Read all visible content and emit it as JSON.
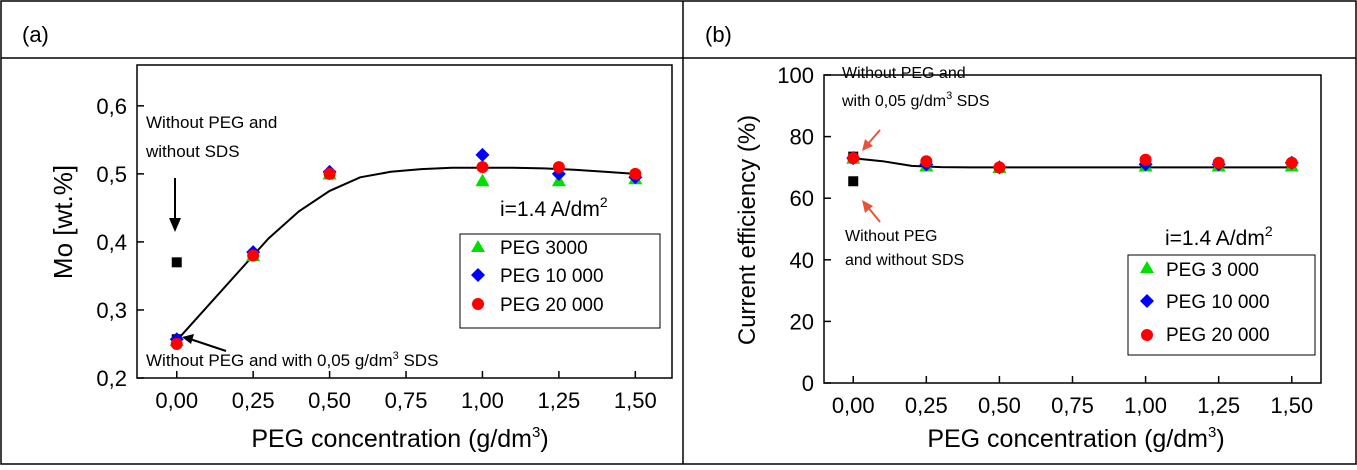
{
  "panels": [
    {
      "label": "(a)"
    },
    {
      "label": "(b)"
    }
  ],
  "chart_data": [
    {
      "type": "scatter",
      "panel": "(a)",
      "xlabel": "PEG concentration (g/dm",
      "xlabel_sup": "3",
      "xlabel_tail": ")",
      "ylabel": "Mo [wt.%]",
      "xlim": [
        -0.13,
        1.62
      ],
      "ylim": [
        0.2,
        0.66
      ],
      "xticks": [
        "0,00",
        "0,25",
        "0,50",
        "0,75",
        "1,00",
        "1,25",
        "1,50"
      ],
      "xtick_values": [
        0,
        0.25,
        0.5,
        0.75,
        1.0,
        1.25,
        1.5
      ],
      "yticks": [
        "0,2",
        "0,3",
        "0,4",
        "0,5",
        "0,6"
      ],
      "ytick_values": [
        0.2,
        0.3,
        0.4,
        0.5,
        0.6
      ],
      "series": [
        {
          "name": "PEG 3000",
          "marker": "triangle",
          "color": "#00e000",
          "x": [
            0.0,
            0.25,
            0.5,
            1.0,
            1.25,
            1.5
          ],
          "y": [
            0.255,
            0.38,
            0.5,
            0.49,
            0.49,
            0.493
          ]
        },
        {
          "name": "PEG 10 000",
          "marker": "diamond",
          "color": "#0000ff",
          "x": [
            0.0,
            0.25,
            0.5,
            1.0,
            1.25,
            1.5
          ],
          "y": [
            0.257,
            0.385,
            0.503,
            0.528,
            0.5,
            0.495
          ]
        },
        {
          "name": "PEG 20 000",
          "marker": "circle",
          "color": "#ff0000",
          "x": [
            0.0,
            0.25,
            0.5,
            1.0,
            1.25,
            1.5
          ],
          "y": [
            0.25,
            0.38,
            0.5,
            0.51,
            0.51,
            0.5
          ]
        }
      ],
      "extra_points": [
        {
          "x": 0.0,
          "y": 0.37,
          "color": "#000000",
          "marker": "square"
        },
        {
          "x": 0.0,
          "y": 0.257,
          "color": "#000000",
          "marker": "square"
        }
      ],
      "fit_curve": {
        "x": [
          0.0,
          0.1,
          0.2,
          0.3,
          0.4,
          0.5,
          0.6,
          0.7,
          0.8,
          0.9,
          1.0,
          1.1,
          1.2,
          1.3,
          1.4,
          1.5
        ],
        "y": [
          0.255,
          0.305,
          0.355,
          0.405,
          0.445,
          0.475,
          0.495,
          0.503,
          0.507,
          0.509,
          0.509,
          0.509,
          0.508,
          0.506,
          0.503,
          0.5
        ]
      },
      "annotations": [
        {
          "lines": [
            "Without PEG and",
            "without SDS"
          ],
          "arrow_color": "#000000"
        },
        {
          "text": "Without PEG and with 0,05 g/dm",
          "sup": "3",
          "tail": " SDS",
          "arrow_color": "#000000"
        },
        {
          "text": "i=1.4 A/dm",
          "sup": "2"
        }
      ],
      "legend_position": "right-center"
    },
    {
      "type": "scatter",
      "panel": "(b)",
      "xlabel": "PEG concentration (g/dm",
      "xlabel_sup": "3",
      "xlabel_tail": ")",
      "ylabel": "Current efficiency (%)",
      "xlim": [
        -0.1,
        1.6
      ],
      "ylim": [
        0,
        100
      ],
      "xticks": [
        "0,00",
        "0,25",
        "0,50",
        "0,75",
        "1,00",
        "1,25",
        "1,50"
      ],
      "xtick_values": [
        0,
        0.25,
        0.5,
        0.75,
        1.0,
        1.25,
        1.5
      ],
      "yticks": [
        "0",
        "20",
        "40",
        "60",
        "80",
        "100"
      ],
      "ytick_values": [
        0,
        20,
        40,
        60,
        80,
        100
      ],
      "series": [
        {
          "name": "PEG 3 000",
          "marker": "triangle",
          "color": "#00e000",
          "x": [
            0.0,
            0.25,
            0.5,
            1.0,
            1.25,
            1.5
          ],
          "y": [
            73,
            70.5,
            70,
            70.5,
            70.5,
            70.5
          ]
        },
        {
          "name": "PEG 10 000",
          "marker": "diamond",
          "color": "#0000ff",
          "x": [
            0.0,
            0.25,
            0.5,
            1.0,
            1.25,
            1.5
          ],
          "y": [
            73,
            71,
            70,
            71,
            71,
            71.5
          ]
        },
        {
          "name": "PEG 20 000",
          "marker": "circle",
          "color": "#ff0000",
          "x": [
            0.0,
            0.25,
            0.5,
            1.0,
            1.25,
            1.5
          ],
          "y": [
            73,
            72,
            70,
            72.5,
            71.5,
            71.5
          ]
        }
      ],
      "extra_points": [
        {
          "x": 0.0,
          "y": 73.5,
          "color": "#000000",
          "marker": "square"
        },
        {
          "x": 0.0,
          "y": 65.5,
          "color": "#000000",
          "marker": "square"
        }
      ],
      "fit_curve": {
        "x": [
          0.0,
          0.1,
          0.2,
          0.3,
          0.4,
          0.5,
          0.75,
          1.0,
          1.25,
          1.5
        ],
        "y": [
          73,
          72,
          70.5,
          70.1,
          70,
          70,
          70,
          70,
          70,
          70
        ]
      },
      "annotations": [
        {
          "lines": [
            "Without PEG and"
          ],
          "extra": "with 0,05 g/dm",
          "sup": "3",
          "tail": " SDS",
          "arrow_color": "#e8533a"
        },
        {
          "lines": [
            "Without PEG",
            "and without SDS"
          ],
          "arrow_color": "#e8533a"
        },
        {
          "text": "i=1.4 A/dm",
          "sup": "2"
        }
      ],
      "legend_position": "bottom-right"
    }
  ]
}
